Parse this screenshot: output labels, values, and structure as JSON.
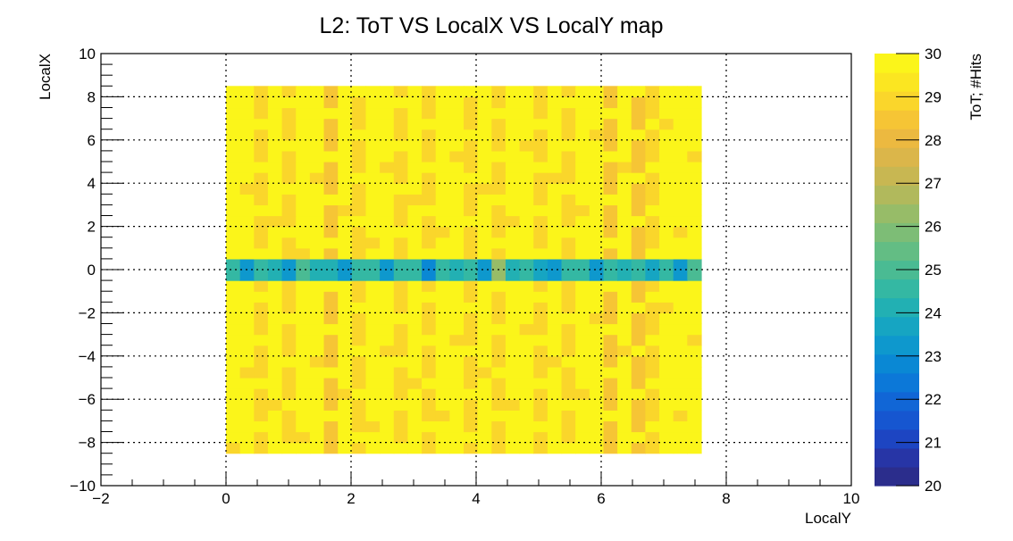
{
  "chart_data": {
    "type": "heatmap",
    "title": "L2: ToT VS LocalX VS LocalY map",
    "xlabel": "LocalY",
    "ylabel": "LocalX",
    "zlabel": "ToT; #Hits",
    "xlim": [
      -2,
      10
    ],
    "ylim": [
      -10,
      10
    ],
    "zlim": [
      20,
      30
    ],
    "x_ticks": [
      "−2",
      "0",
      "2",
      "4",
      "6",
      "8",
      "10"
    ],
    "y_ticks": [
      "−10",
      "−8",
      "−6",
      "−4",
      "−2",
      "0",
      "2",
      "4",
      "6",
      "8",
      "10"
    ],
    "z_ticks": [
      "20",
      "21",
      "22",
      "23",
      "24",
      "25",
      "26",
      "27",
      "28",
      "29",
      "30"
    ],
    "grid": true,
    "colormap": [
      "#2b2d8c",
      "#2735a6",
      "#1d45c2",
      "#1656d0",
      "#1166d6",
      "#0c78d8",
      "#0a88d4",
      "#0e98cd",
      "#16a5c2",
      "#22b0b3",
      "#34b8a3",
      "#4abb93",
      "#63bd84",
      "#7dbd76",
      "#97bc68",
      "#b1b95c",
      "#c8b752",
      "#dbb64a",
      "#ecb940",
      "#f6c535",
      "#fad62b",
      "#fbe621",
      "#fbf51a"
    ],
    "x_range": [
      0,
      7.6
    ],
    "y_range": [
      -8.5,
      8.5
    ],
    "columns": 34,
    "rows": 34,
    "cells": {
      "base_value": 29.8,
      "row_band": {
        "y_min": -0.5,
        "y_max": 0.5,
        "values": [
          24.5,
          23.2,
          24.6,
          24.3,
          23.1,
          24.8,
          24.1,
          24.3,
          23.4,
          24.6,
          24.4,
          23.3,
          24.7,
          24.5,
          23.0,
          24.4,
          24.2,
          24.6,
          23.4,
          26.3,
          24.3,
          24.5,
          23.8,
          23.2,
          24.5,
          24.4,
          23.1,
          24.6,
          24.3,
          24.4,
          23.5,
          24.6,
          23.4,
          24.8
        ]
      },
      "dim_columns": [
        {
          "index": 2,
          "value": 28.8
        },
        {
          "index": 4,
          "value": 29.0
        },
        {
          "index": 7,
          "value": 28.6
        },
        {
          "index": 9,
          "value": 29.1
        },
        {
          "index": 12,
          "value": 28.7
        },
        {
          "index": 14,
          "value": 29.1
        },
        {
          "index": 17,
          "value": 28.8
        },
        {
          "index": 19,
          "value": 29.1
        },
        {
          "index": 22,
          "value": 28.8
        },
        {
          "index": 24,
          "value": 29.1
        },
        {
          "index": 27,
          "value": 28.6
        },
        {
          "index": 29,
          "value": 28.5
        },
        {
          "index": 30,
          "value": 28.9
        }
      ]
    }
  }
}
